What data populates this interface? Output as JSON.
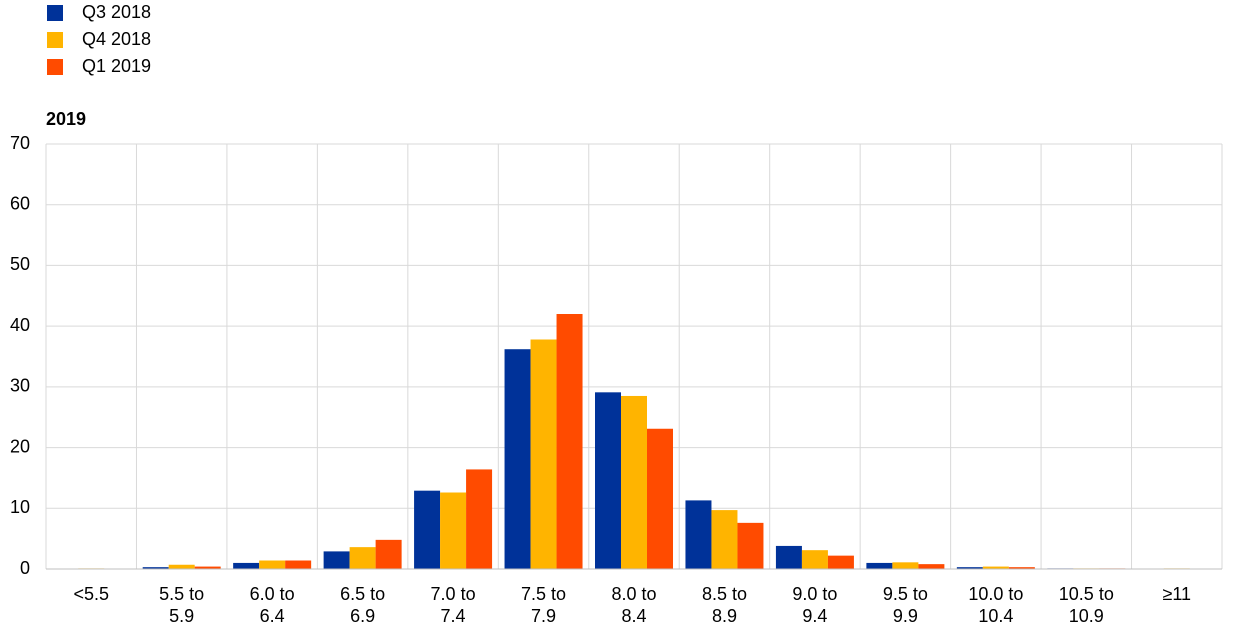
{
  "chart_data": {
    "type": "bar",
    "subtitle": "2019",
    "categories": [
      [
        "<5.5"
      ],
      [
        "5.5 to",
        "5.9"
      ],
      [
        "6.0 to",
        "6.4"
      ],
      [
        "6.5 to",
        "6.9"
      ],
      [
        "7.0 to",
        "7.4"
      ],
      [
        "7.5 to",
        "7.9"
      ],
      [
        "8.0 to",
        "8.4"
      ],
      [
        "8.5 to",
        "8.9"
      ],
      [
        "9.0 to",
        "9.4"
      ],
      [
        "9.5 to",
        "9.9"
      ],
      [
        "10.0 to",
        "10.4"
      ],
      [
        "10.5 to",
        "10.9"
      ],
      [
        "≥11"
      ]
    ],
    "series": [
      {
        "name": "Q3 2018",
        "color": "#003299",
        "values": [
          0.05,
          0.3,
          1.0,
          2.9,
          12.9,
          36.2,
          29.1,
          11.3,
          3.8,
          1.0,
          0.3,
          0.1,
          0.05
        ]
      },
      {
        "name": "Q4 2018",
        "color": "#ffb400",
        "values": [
          0.1,
          0.7,
          1.4,
          3.6,
          12.6,
          37.8,
          28.5,
          9.7,
          3.1,
          1.1,
          0.4,
          0.1,
          0.1
        ]
      },
      {
        "name": "Q1 2019",
        "color": "#ff4b00",
        "values": [
          0.05,
          0.4,
          1.4,
          4.8,
          16.4,
          42.0,
          23.1,
          7.6,
          2.2,
          0.8,
          0.3,
          0.1,
          0.05
        ]
      }
    ],
    "ylim": [
      0,
      70
    ],
    "yticks": [
      0,
      10,
      20,
      30,
      40,
      50,
      60,
      70
    ],
    "grid": true,
    "legend": "top-left"
  }
}
